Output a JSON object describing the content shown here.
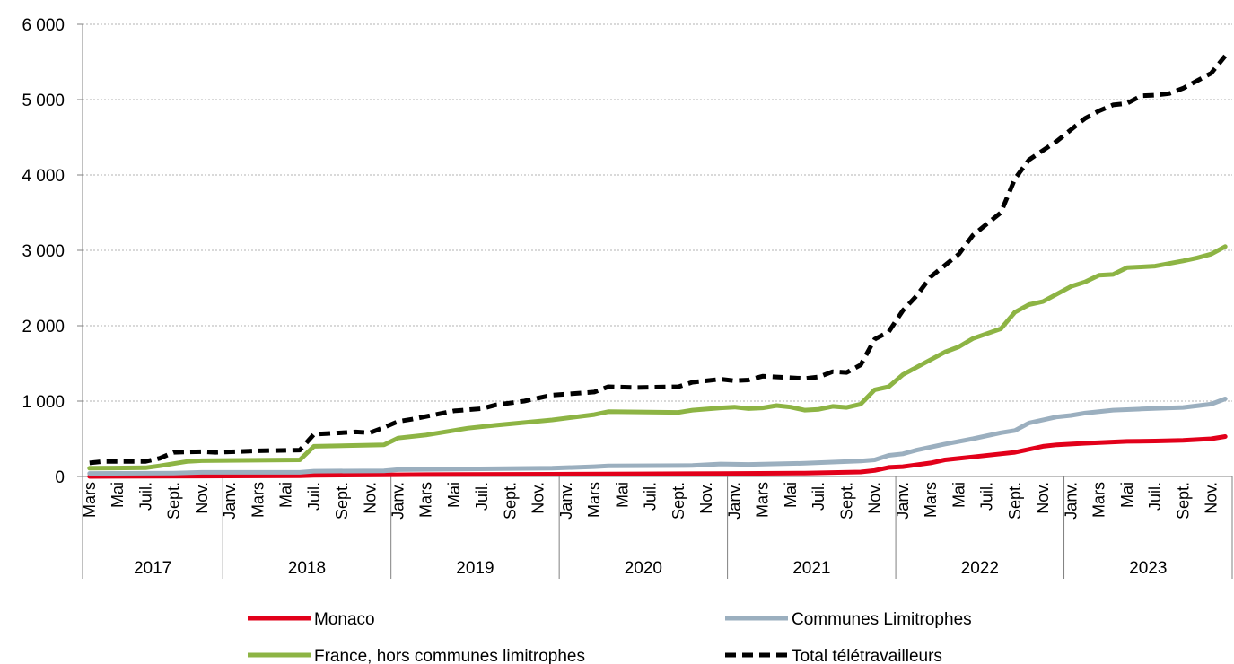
{
  "chart_data": {
    "type": "line",
    "title": "",
    "xlabel": "",
    "ylabel": "",
    "ylim": [
      0,
      6000
    ],
    "yticks": [
      {
        "value": 0,
        "label": "0"
      },
      {
        "value": 1000,
        "label": "1 000"
      },
      {
        "value": 2000,
        "label": "2 000"
      },
      {
        "value": 3000,
        "label": "3 000"
      },
      {
        "value": 4000,
        "label": "4 000"
      },
      {
        "value": 5000,
        "label": "5 000"
      },
      {
        "value": 6000,
        "label": "6 000"
      }
    ],
    "grid": "horizontal",
    "legend_position": "bottom",
    "x_start": "2017-03",
    "x_end": "2023-12",
    "month_ticks": [
      {
        "month": "2017-03",
        "label": "Mars"
      },
      {
        "month": "2017-05",
        "label": "Mai"
      },
      {
        "month": "2017-07",
        "label": "Juil."
      },
      {
        "month": "2017-09",
        "label": "Sept."
      },
      {
        "month": "2017-11",
        "label": "Nov."
      },
      {
        "month": "2018-01",
        "label": "Janv."
      },
      {
        "month": "2018-03",
        "label": "Mars"
      },
      {
        "month": "2018-05",
        "label": "Mai"
      },
      {
        "month": "2018-07",
        "label": "Juil."
      },
      {
        "month": "2018-09",
        "label": "Sept."
      },
      {
        "month": "2018-11",
        "label": "Nov."
      },
      {
        "month": "2019-01",
        "label": "Janv."
      },
      {
        "month": "2019-03",
        "label": "Mars"
      },
      {
        "month": "2019-05",
        "label": "Mai"
      },
      {
        "month": "2019-07",
        "label": "Juil."
      },
      {
        "month": "2019-09",
        "label": "Sept."
      },
      {
        "month": "2019-11",
        "label": "Nov."
      },
      {
        "month": "2020-01",
        "label": "Janv."
      },
      {
        "month": "2020-03",
        "label": "Mars"
      },
      {
        "month": "2020-05",
        "label": "Mai"
      },
      {
        "month": "2020-07",
        "label": "Juil."
      },
      {
        "month": "2020-09",
        "label": "Sept."
      },
      {
        "month": "2020-11",
        "label": "Nov."
      },
      {
        "month": "2021-01",
        "label": "Janv."
      },
      {
        "month": "2021-03",
        "label": "Mars"
      },
      {
        "month": "2021-05",
        "label": "Mai"
      },
      {
        "month": "2021-07",
        "label": "Juil."
      },
      {
        "month": "2021-09",
        "label": "Sept."
      },
      {
        "month": "2021-11",
        "label": "Nov."
      },
      {
        "month": "2022-01",
        "label": "Janv."
      },
      {
        "month": "2022-03",
        "label": "Mars"
      },
      {
        "month": "2022-05",
        "label": "Mai"
      },
      {
        "month": "2022-07",
        "label": "Juil."
      },
      {
        "month": "2022-09",
        "label": "Sept."
      },
      {
        "month": "2022-11",
        "label": "Nov."
      },
      {
        "month": "2023-01",
        "label": "Janv."
      },
      {
        "month": "2023-03",
        "label": "Mars"
      },
      {
        "month": "2023-05",
        "label": "Mai"
      },
      {
        "month": "2023-07",
        "label": "Juil."
      },
      {
        "month": "2023-09",
        "label": "Sept."
      },
      {
        "month": "2023-11",
        "label": "Nov."
      }
    ],
    "years": [
      {
        "label": "2017",
        "from": "2017-03",
        "to": "2017-12"
      },
      {
        "label": "2018",
        "from": "2018-01",
        "to": "2018-12"
      },
      {
        "label": "2019",
        "from": "2019-01",
        "to": "2019-12"
      },
      {
        "label": "2020",
        "from": "2020-01",
        "to": "2020-12"
      },
      {
        "label": "2021",
        "from": "2021-01",
        "to": "2021-12"
      },
      {
        "label": "2022",
        "from": "2022-01",
        "to": "2022-12"
      },
      {
        "label": "2023",
        "from": "2023-01",
        "to": "2023-12"
      }
    ],
    "series": [
      {
        "name": "Monaco",
        "color": "#e2001a",
        "dash": "solid",
        "points": [
          [
            "2017-03",
            0
          ],
          [
            "2017-11",
            5
          ],
          [
            "2018-06",
            10
          ],
          [
            "2018-07",
            15
          ],
          [
            "2018-12",
            20
          ],
          [
            "2019-03",
            25
          ],
          [
            "2019-12",
            30
          ],
          [
            "2020-06",
            35
          ],
          [
            "2020-12",
            38
          ],
          [
            "2021-06",
            45
          ],
          [
            "2021-10",
            60
          ],
          [
            "2021-11",
            80
          ],
          [
            "2021-12",
            120
          ],
          [
            "2022-01",
            130
          ],
          [
            "2022-03",
            180
          ],
          [
            "2022-04",
            220
          ],
          [
            "2022-06",
            260
          ],
          [
            "2022-08",
            300
          ],
          [
            "2022-09",
            320
          ],
          [
            "2022-11",
            400
          ],
          [
            "2022-12",
            420
          ],
          [
            "2023-02",
            440
          ],
          [
            "2023-05",
            465
          ],
          [
            "2023-07",
            470
          ],
          [
            "2023-09",
            480
          ],
          [
            "2023-11",
            500
          ],
          [
            "2023-12",
            530
          ]
        ]
      },
      {
        "name": "Communes Limitrophes",
        "color": "#9bafbf",
        "dash": "solid",
        "points": [
          [
            "2017-03",
            40
          ],
          [
            "2017-09",
            45
          ],
          [
            "2017-11",
            55
          ],
          [
            "2018-06",
            55
          ],
          [
            "2018-07",
            70
          ],
          [
            "2018-12",
            75
          ],
          [
            "2019-01",
            90
          ],
          [
            "2019-06",
            100
          ],
          [
            "2019-12",
            110
          ],
          [
            "2020-03",
            130
          ],
          [
            "2020-04",
            140
          ],
          [
            "2020-10",
            145
          ],
          [
            "2020-12",
            165
          ],
          [
            "2021-02",
            160
          ],
          [
            "2021-06",
            175
          ],
          [
            "2021-10",
            205
          ],
          [
            "2021-11",
            220
          ],
          [
            "2021-12",
            280
          ],
          [
            "2022-01",
            300
          ],
          [
            "2022-02",
            350
          ],
          [
            "2022-04",
            430
          ],
          [
            "2022-06",
            500
          ],
          [
            "2022-08",
            580
          ],
          [
            "2022-09",
            610
          ],
          [
            "2022-10",
            710
          ],
          [
            "2022-12",
            790
          ],
          [
            "2023-01",
            810
          ],
          [
            "2023-02",
            840
          ],
          [
            "2023-04",
            880
          ],
          [
            "2023-06",
            895
          ],
          [
            "2023-08",
            910
          ],
          [
            "2023-09",
            915
          ],
          [
            "2023-11",
            960
          ],
          [
            "2023-12",
            1030
          ]
        ]
      },
      {
        "name": "France, hors communes limitrophes",
        "color": "#8db444",
        "dash": "solid",
        "points": [
          [
            "2017-03",
            110
          ],
          [
            "2017-07",
            115
          ],
          [
            "2017-08",
            140
          ],
          [
            "2017-09",
            170
          ],
          [
            "2017-10",
            200
          ],
          [
            "2017-11",
            210
          ],
          [
            "2018-06",
            220
          ],
          [
            "2018-07",
            400
          ],
          [
            "2018-12",
            420
          ],
          [
            "2019-01",
            510
          ],
          [
            "2019-03",
            550
          ],
          [
            "2019-06",
            640
          ],
          [
            "2019-08",
            680
          ],
          [
            "2019-12",
            750
          ],
          [
            "2020-03",
            820
          ],
          [
            "2020-04",
            860
          ],
          [
            "2020-09",
            850
          ],
          [
            "2020-10",
            880
          ],
          [
            "2020-12",
            910
          ],
          [
            "2021-01",
            920
          ],
          [
            "2021-02",
            900
          ],
          [
            "2021-03",
            910
          ],
          [
            "2021-04",
            940
          ],
          [
            "2021-05",
            920
          ],
          [
            "2021-06",
            880
          ],
          [
            "2021-07",
            890
          ],
          [
            "2021-08",
            930
          ],
          [
            "2021-09",
            915
          ],
          [
            "2021-10",
            960
          ],
          [
            "2021-11",
            1150
          ],
          [
            "2021-12",
            1190
          ],
          [
            "2022-01",
            1350
          ],
          [
            "2022-02",
            1450
          ],
          [
            "2022-04",
            1650
          ],
          [
            "2022-05",
            1720
          ],
          [
            "2022-06",
            1830
          ],
          [
            "2022-08",
            1960
          ],
          [
            "2022-09",
            2180
          ],
          [
            "2022-10",
            2280
          ],
          [
            "2022-11",
            2320
          ],
          [
            "2022-12",
            2420
          ],
          [
            "2023-01",
            2520
          ],
          [
            "2023-02",
            2580
          ],
          [
            "2023-03",
            2670
          ],
          [
            "2023-04",
            2680
          ],
          [
            "2023-05",
            2770
          ],
          [
            "2023-06",
            2780
          ],
          [
            "2023-07",
            2790
          ],
          [
            "2023-09",
            2860
          ],
          [
            "2023-10",
            2900
          ],
          [
            "2023-11",
            2950
          ],
          [
            "2023-12",
            3050
          ]
        ]
      },
      {
        "name": "Total télétravailleurs",
        "color": "#000000",
        "dash": "dashed",
        "points": [
          [
            "2017-03",
            180
          ],
          [
            "2017-04",
            200
          ],
          [
            "2017-07",
            200
          ],
          [
            "2017-08",
            240
          ],
          [
            "2017-09",
            320
          ],
          [
            "2017-11",
            330
          ],
          [
            "2017-12",
            320
          ],
          [
            "2018-03",
            340
          ],
          [
            "2018-06",
            350
          ],
          [
            "2018-07",
            560
          ],
          [
            "2018-10",
            590
          ],
          [
            "2018-11",
            580
          ],
          [
            "2018-12",
            650
          ],
          [
            "2019-01",
            730
          ],
          [
            "2019-02",
            760
          ],
          [
            "2019-05",
            870
          ],
          [
            "2019-07",
            900
          ],
          [
            "2019-08",
            950
          ],
          [
            "2019-10",
            1000
          ],
          [
            "2019-12",
            1080
          ],
          [
            "2020-03",
            1120
          ],
          [
            "2020-04",
            1190
          ],
          [
            "2020-06",
            1180
          ],
          [
            "2020-09",
            1190
          ],
          [
            "2020-10",
            1250
          ],
          [
            "2020-12",
            1290
          ],
          [
            "2021-01",
            1270
          ],
          [
            "2021-02",
            1280
          ],
          [
            "2021-03",
            1330
          ],
          [
            "2021-04",
            1320
          ],
          [
            "2021-06",
            1300
          ],
          [
            "2021-07",
            1320
          ],
          [
            "2021-08",
            1390
          ],
          [
            "2021-09",
            1380
          ],
          [
            "2021-10",
            1480
          ],
          [
            "2021-11",
            1820
          ],
          [
            "2021-12",
            1920
          ],
          [
            "2022-01",
            2200
          ],
          [
            "2022-02",
            2400
          ],
          [
            "2022-03",
            2650
          ],
          [
            "2022-05",
            2950
          ],
          [
            "2022-06",
            3200
          ],
          [
            "2022-07",
            3350
          ],
          [
            "2022-08",
            3500
          ],
          [
            "2022-09",
            3950
          ],
          [
            "2022-10",
            4200
          ],
          [
            "2022-12",
            4450
          ],
          [
            "2023-01",
            4600
          ],
          [
            "2023-02",
            4750
          ],
          [
            "2023-03",
            4850
          ],
          [
            "2023-04",
            4930
          ],
          [
            "2023-05",
            4950
          ],
          [
            "2023-06",
            5050
          ],
          [
            "2023-07",
            5060
          ],
          [
            "2023-08",
            5080
          ],
          [
            "2023-09",
            5150
          ],
          [
            "2023-10",
            5250
          ],
          [
            "2023-11",
            5350
          ],
          [
            "2023-12",
            5580
          ]
        ]
      }
    ]
  }
}
